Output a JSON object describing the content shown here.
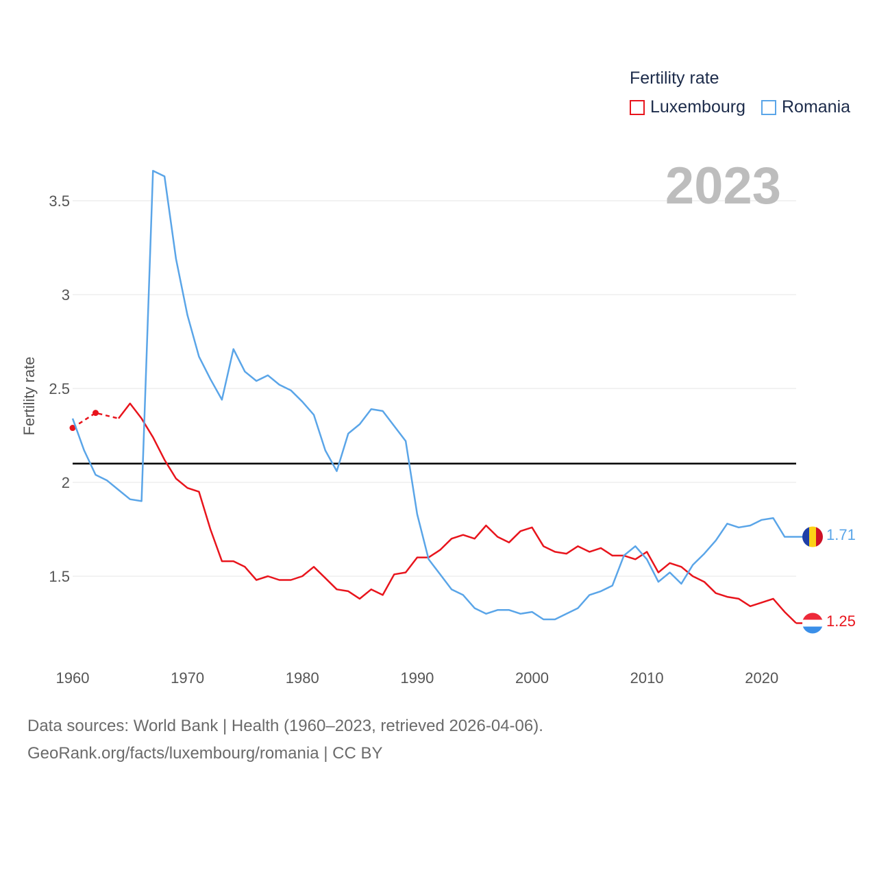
{
  "legend": {
    "title": "Fertility rate",
    "items": [
      {
        "label": "Luxembourg",
        "color": "#e8141c"
      },
      {
        "label": "Romania",
        "color": "#5aa5e8"
      }
    ]
  },
  "year_label": "2023",
  "footer": {
    "line1": "Data sources: World Bank | Health (1960–2023, retrieved 2026-04-06).",
    "line2": "GeoRank.org/facts/luxembourg/romania | CC BY"
  },
  "end_labels": {
    "romania": "1.71",
    "luxembourg": "1.25"
  },
  "chart_data": {
    "type": "line",
    "title": "",
    "xlabel": "",
    "ylabel": "Fertility rate",
    "xlim": [
      1960,
      2023
    ],
    "ylim": [
      1.1,
      3.75
    ],
    "x_ticks": [
      1960,
      1970,
      1980,
      1990,
      2000,
      2010,
      2020
    ],
    "y_ticks": [
      1.5,
      2,
      2.5,
      3,
      3.5
    ],
    "y_tick_labels": [
      "1.5",
      "2",
      "2.5",
      "3",
      "3.5"
    ],
    "reference_line": 2.1,
    "x": [
      1960,
      1961,
      1962,
      1963,
      1964,
      1965,
      1966,
      1967,
      1968,
      1969,
      1970,
      1971,
      1972,
      1973,
      1974,
      1975,
      1976,
      1977,
      1978,
      1979,
      1980,
      1981,
      1982,
      1983,
      1984,
      1985,
      1986,
      1987,
      1988,
      1989,
      1990,
      1991,
      1992,
      1993,
      1994,
      1995,
      1996,
      1997,
      1998,
      1999,
      2000,
      2001,
      2002,
      2003,
      2004,
      2005,
      2006,
      2007,
      2008,
      2009,
      2010,
      2011,
      2012,
      2013,
      2014,
      2015,
      2016,
      2017,
      2018,
      2019,
      2020,
      2021,
      2022,
      2023
    ],
    "series": [
      {
        "name": "Luxembourg",
        "color": "#e8141c",
        "dashed_until": 1964,
        "markers": [
          1960,
          1962
        ],
        "values": [
          2.29,
          null,
          2.37,
          null,
          2.34,
          2.42,
          2.34,
          2.24,
          2.12,
          2.02,
          1.97,
          1.95,
          1.75,
          1.58,
          1.58,
          1.55,
          1.48,
          1.5,
          1.48,
          1.48,
          1.5,
          1.55,
          1.49,
          1.43,
          1.42,
          1.38,
          1.43,
          1.4,
          1.51,
          1.52,
          1.6,
          1.6,
          1.64,
          1.7,
          1.72,
          1.7,
          1.77,
          1.71,
          1.68,
          1.74,
          1.76,
          1.66,
          1.63,
          1.62,
          1.66,
          1.63,
          1.65,
          1.61,
          1.61,
          1.59,
          1.63,
          1.52,
          1.57,
          1.55,
          1.5,
          1.47,
          1.41,
          1.39,
          1.38,
          1.34,
          1.36,
          1.38,
          1.31,
          1.25
        ]
      },
      {
        "name": "Romania",
        "color": "#5aa5e8",
        "values": [
          2.34,
          2.17,
          2.04,
          2.01,
          1.96,
          1.91,
          1.9,
          3.66,
          3.63,
          3.19,
          2.89,
          2.67,
          2.55,
          2.44,
          2.71,
          2.59,
          2.54,
          2.57,
          2.52,
          2.49,
          2.43,
          2.36,
          2.17,
          2.06,
          2.26,
          2.31,
          2.39,
          2.38,
          2.3,
          2.22,
          1.83,
          1.59,
          1.51,
          1.43,
          1.4,
          1.33,
          1.3,
          1.32,
          1.32,
          1.3,
          1.31,
          1.27,
          1.27,
          1.3,
          1.33,
          1.4,
          1.42,
          1.45,
          1.61,
          1.66,
          1.59,
          1.47,
          1.52,
          1.46,
          1.56,
          1.62,
          1.69,
          1.78,
          1.76,
          1.77,
          1.8,
          1.81,
          1.71,
          1.71
        ]
      }
    ]
  }
}
